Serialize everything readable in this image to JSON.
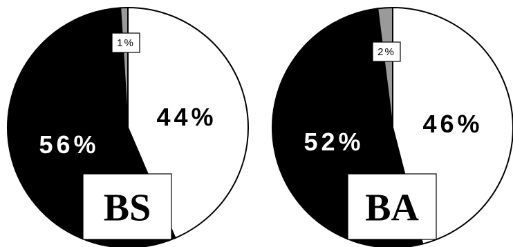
{
  "chart_data": [
    {
      "type": "pie",
      "label": "BS",
      "slices": [
        {
          "value": 44,
          "label": "44%",
          "color": "#ffffff"
        },
        {
          "value": 56,
          "label": "56%",
          "color": "#000000"
        },
        {
          "value": 1,
          "label": "1%",
          "color": "#9a9a9a"
        }
      ]
    },
    {
      "type": "pie",
      "label": "BA",
      "slices": [
        {
          "value": 46,
          "label": "46%",
          "color": "#ffffff"
        },
        {
          "value": 52,
          "label": "52%",
          "color": "#000000"
        },
        {
          "value": 2,
          "label": "2%",
          "color": "#9a9a9a"
        }
      ]
    }
  ]
}
